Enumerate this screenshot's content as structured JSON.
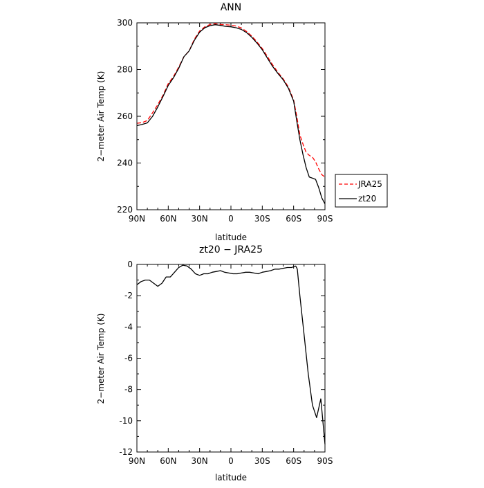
{
  "chart_data": [
    {
      "type": "line",
      "title": "ANN",
      "xlabel": "latitude",
      "ylabel": "2−meter Air Temp (K)",
      "x_tick_labels": [
        "90N",
        "60N",
        "30N",
        "0",
        "30S",
        "60S",
        "90S"
      ],
      "x_tick_values": [
        90,
        60,
        30,
        0,
        -30,
        -60,
        -90
      ],
      "xlim": [
        90,
        -90
      ],
      "ylim": [
        220,
        300
      ],
      "y_ticks": [
        220,
        240,
        260,
        280,
        300
      ],
      "grid": false,
      "legend_position": "outside-right",
      "series": [
        {
          "name": "JRA25",
          "color": "#ff0000",
          "dash": "dashed",
          "x": [
            90,
            85,
            80,
            75,
            70,
            65,
            60,
            55,
            50,
            45,
            40,
            35,
            30,
            25,
            20,
            15,
            10,
            5,
            0,
            -5,
            -10,
            -15,
            -20,
            -25,
            -30,
            -35,
            -40,
            -45,
            -50,
            -55,
            -60,
            -63,
            -66,
            -69,
            -72,
            -75,
            -78,
            -81,
            -84,
            -87,
            -90
          ],
          "y": [
            257,
            257.3,
            258.2,
            261.5,
            265,
            269,
            274,
            277,
            281,
            285.5,
            288,
            293,
            296.5,
            298.3,
            299.3,
            299.6,
            299.3,
            299.2,
            299.0,
            298.6,
            297.8,
            296.3,
            294.3,
            291.8,
            289.0,
            285.5,
            282.0,
            278.8,
            276.0,
            272.5,
            267.0,
            260.0,
            252.0,
            248.0,
            244.5,
            243.3,
            242.5,
            240.5,
            237.5,
            235.0,
            234.0
          ]
        },
        {
          "name": "zt20",
          "color": "#000000",
          "dash": "solid",
          "x": [
            90,
            85,
            80,
            75,
            70,
            65,
            60,
            55,
            50,
            45,
            40,
            35,
            30,
            25,
            20,
            15,
            10,
            5,
            0,
            -5,
            -10,
            -15,
            -20,
            -25,
            -30,
            -35,
            -40,
            -45,
            -50,
            -55,
            -60,
            -63,
            -66,
            -69,
            -72,
            -75,
            -78,
            -81,
            -84,
            -87,
            -90
          ],
          "y": [
            256,
            256.5,
            257.2,
            260.0,
            264.0,
            268.5,
            273.2,
            276.5,
            280.5,
            285.5,
            288.0,
            292.5,
            296.0,
            297.9,
            298.8,
            299.2,
            298.9,
            298.5,
            298.3,
            297.9,
            297.2,
            295.8,
            293.8,
            291.3,
            288.5,
            284.8,
            281.3,
            278.3,
            275.6,
            272.0,
            266.5,
            258.0,
            250.0,
            243.5,
            238.0,
            234.0,
            233.5,
            233.0,
            229.5,
            225.0,
            222.5
          ]
        }
      ]
    },
    {
      "type": "line",
      "title": "zt20 − JRA25",
      "xlabel": "latitude",
      "ylabel": "2−meter Air Temp (K)",
      "x_tick_labels": [
        "90N",
        "60N",
        "30N",
        "0",
        "30S",
        "60S",
        "90S"
      ],
      "x_tick_values": [
        90,
        60,
        30,
        0,
        -30,
        -60,
        -90
      ],
      "xlim": [
        90,
        -90
      ],
      "ylim": [
        -12,
        0
      ],
      "y_ticks": [
        -12,
        -10,
        -8,
        -6,
        -4,
        -2,
        0
      ],
      "grid": false,
      "series": [
        {
          "color": "#000000",
          "dash": "solid",
          "x": [
            90,
            86,
            82,
            78,
            74,
            70,
            66,
            62,
            58,
            54,
            50,
            46,
            42,
            38,
            34,
            30,
            26,
            22,
            18,
            14,
            10,
            6,
            2,
            -2,
            -6,
            -10,
            -14,
            -18,
            -22,
            -26,
            -30,
            -34,
            -38,
            -42,
            -46,
            -50,
            -54,
            -58,
            -62,
            -63.5,
            -66,
            -70,
            -74,
            -78,
            -82,
            -86,
            -90
          ],
          "y": [
            -1.3,
            -1.1,
            -1.0,
            -1.0,
            -1.2,
            -1.4,
            -1.2,
            -0.8,
            -0.8,
            -0.5,
            -0.2,
            -0.05,
            -0.1,
            -0.3,
            -0.6,
            -0.7,
            -0.6,
            -0.6,
            -0.5,
            -0.45,
            -0.4,
            -0.5,
            -0.55,
            -0.6,
            -0.6,
            -0.55,
            -0.5,
            -0.5,
            -0.55,
            -0.6,
            -0.5,
            -0.45,
            -0.4,
            -0.3,
            -0.3,
            -0.25,
            -0.2,
            -0.2,
            -0.1,
            -0.3,
            -2.0,
            -4.5,
            -7.0,
            -9.0,
            -9.8,
            -8.6,
            -11.5
          ]
        }
      ]
    }
  ]
}
